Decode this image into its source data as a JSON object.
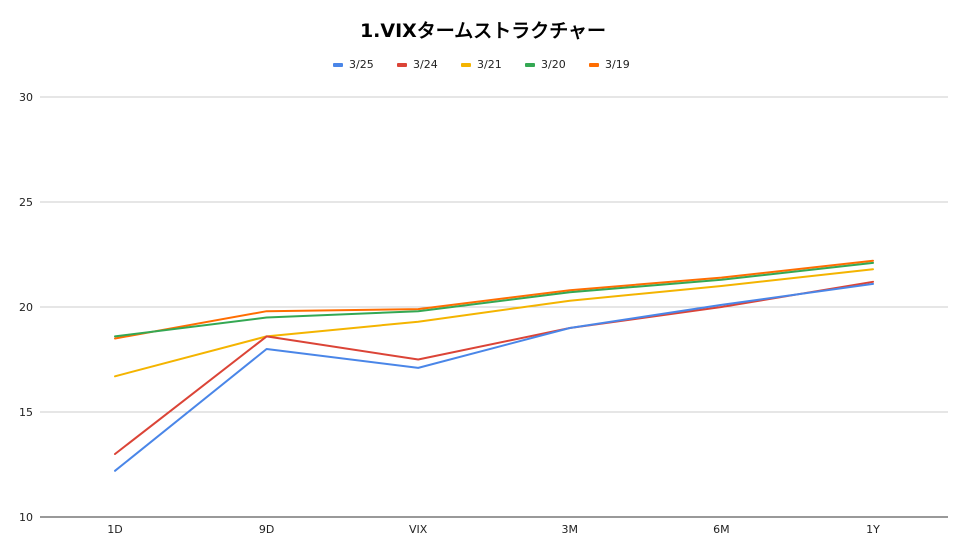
{
  "chart_data": {
    "type": "line",
    "title": "1.VIXタームストラクチャー",
    "xlabel": "",
    "ylabel": "",
    "categories": [
      "1D",
      "9D",
      "VIX",
      "3M",
      "6M",
      "1Y"
    ],
    "ylim": [
      10,
      30
    ],
    "yticks": [
      "10",
      "15",
      "20",
      "25",
      "30"
    ],
    "ytick_values": [
      10,
      15,
      20,
      25,
      30
    ],
    "grid": true,
    "legend_position": "top-center",
    "series": [
      {
        "name": "3/25",
        "color": "#4a86e8",
        "values": [
          12.2,
          18.0,
          17.1,
          19.0,
          20.1,
          21.1
        ]
      },
      {
        "name": "3/24",
        "color": "#db4437",
        "values": [
          13.0,
          18.6,
          17.5,
          19.0,
          20.0,
          21.2
        ]
      },
      {
        "name": "3/21",
        "color": "#f4b400",
        "values": [
          16.7,
          18.6,
          19.3,
          20.3,
          21.0,
          21.8
        ]
      },
      {
        "name": "3/20",
        "color": "#34a853",
        "values": [
          18.6,
          19.5,
          19.8,
          20.7,
          21.3,
          22.1
        ]
      },
      {
        "name": "3/19",
        "color": "#ff6d01",
        "values": [
          18.5,
          19.8,
          19.9,
          20.8,
          21.4,
          22.2
        ]
      }
    ]
  }
}
